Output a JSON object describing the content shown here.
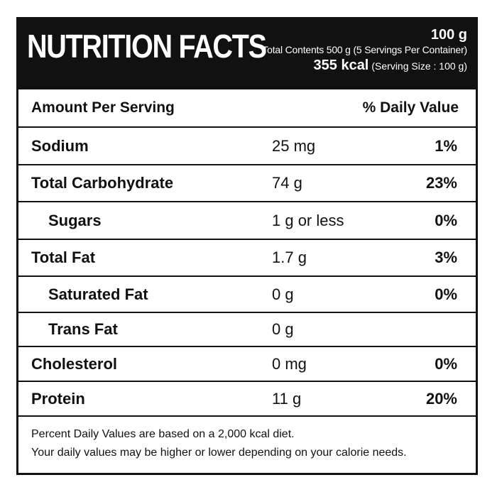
{
  "header": {
    "title": "NUTRITION FACTS",
    "serving_weight": "100 g",
    "total_contents": "Total Contents 500 g (5 Servings Per Container)",
    "energy": "355 kcal",
    "serving_size": "(Serving Size : 100 g)"
  },
  "table": {
    "amount_header": "Amount Per Serving",
    "daily_value_header": "% Daily Value",
    "rows": [
      {
        "name": "Sodium",
        "amount": "25 mg",
        "dv": "1%"
      },
      {
        "name": "Total Carbohydrate",
        "amount": "74 g",
        "dv": "23%"
      },
      {
        "name": "Sugars",
        "amount": "1 g or less",
        "dv": "0%"
      },
      {
        "name": "Total Fat",
        "amount": "1.7 g",
        "dv": "3%"
      },
      {
        "name": "Saturated Fat",
        "amount": "0 g",
        "dv": "0%"
      },
      {
        "name": "Trans Fat",
        "amount": "0 g",
        "dv": ""
      },
      {
        "name": "Cholesterol",
        "amount": "0 mg",
        "dv": "0%"
      },
      {
        "name": "Protein",
        "amount": "11 g",
        "dv": "20%"
      }
    ]
  },
  "footnote": {
    "line1": "Percent Daily Values are based on a 2,000 kcal diet.",
    "line2": "Your daily values may be higher or lower depending on your calorie needs."
  }
}
